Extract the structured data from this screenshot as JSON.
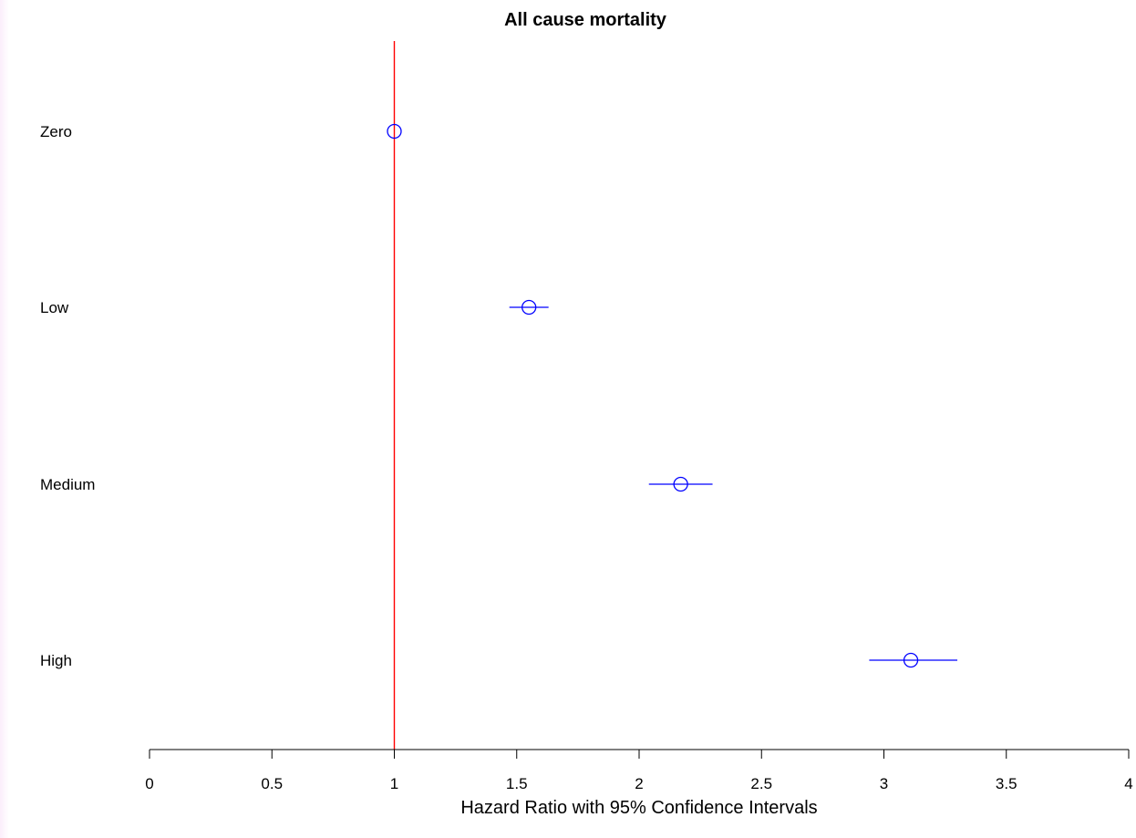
{
  "chart_data": {
    "type": "scatter",
    "subtype": "forest-plot",
    "title": "All cause mortality",
    "xlabel": "Hazard Ratio with 95% Confidence Intervals",
    "ylabel": "",
    "xlim": [
      0,
      4
    ],
    "x_ticks": [
      0,
      0.5,
      1,
      1.5,
      2,
      2.5,
      3,
      3.5,
      4
    ],
    "x_tick_labels": [
      "0",
      "0.5",
      "1",
      "1.5",
      "2",
      "2.5",
      "3",
      "3.5",
      "4"
    ],
    "reference_line": 1,
    "grid": false,
    "categories": [
      "Zero",
      "Low",
      "Medium",
      "High"
    ],
    "series": [
      {
        "estimate": [
          1.0,
          1.55,
          2.17,
          3.11
        ],
        "lower": [
          1.0,
          1.47,
          2.04,
          2.94
        ],
        "upper": [
          1.0,
          1.63,
          2.3,
          3.3
        ]
      }
    ],
    "colors": {
      "points": "#0000ff",
      "reference_line": "#ff0000",
      "axis": "#000000"
    }
  }
}
